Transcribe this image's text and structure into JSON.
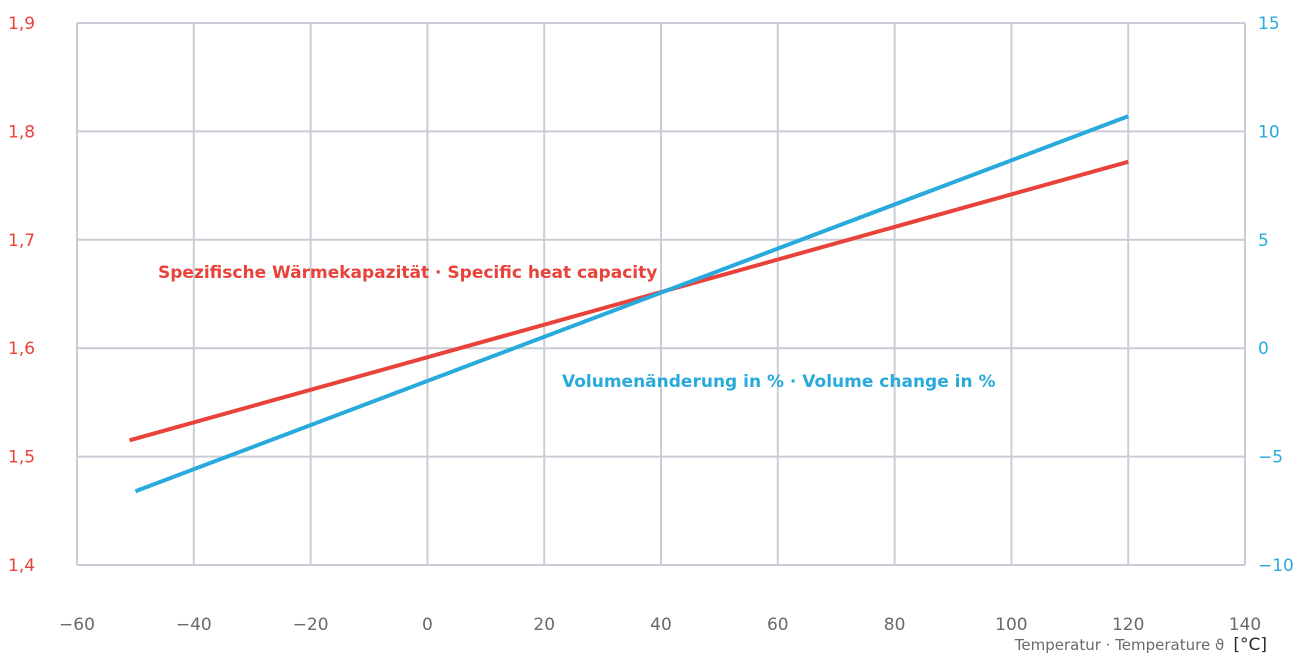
{
  "chart_data": {
    "type": "line",
    "x_axis": {
      "range": [
        -60,
        140
      ],
      "ticks": [
        "−60",
        "−40",
        "−20",
        "0",
        "20",
        "40",
        "60",
        "80",
        "100",
        "120",
        "140"
      ],
      "label": "Temperatur · Temperature ϑ",
      "unit_label": "[°C]"
    },
    "y_left": {
      "range": [
        1.4,
        1.9
      ],
      "ticks": [
        "1,4",
        "1,5",
        "1,6",
        "1,7",
        "1,8",
        "1,9"
      ],
      "color": "#e9423a"
    },
    "y_right": {
      "range": [
        -10,
        15
      ],
      "ticks": [
        "−10",
        "−5",
        "0",
        "5",
        "10",
        "15"
      ],
      "color": "#29aadc"
    },
    "grid": true,
    "series": [
      {
        "name": "Spezifische Wärmekapazität · Specific heat capacity",
        "axis": "left",
        "color": "#e9423a",
        "x": [
          -51,
          120
        ],
        "y": [
          1.515,
          1.772
        ]
      },
      {
        "name": "Volumenänderung in % · Volume change in %",
        "axis": "right",
        "color": "#29aadc",
        "x": [
          -50,
          120
        ],
        "y": [
          -6.6,
          10.7
        ]
      }
    ]
  }
}
